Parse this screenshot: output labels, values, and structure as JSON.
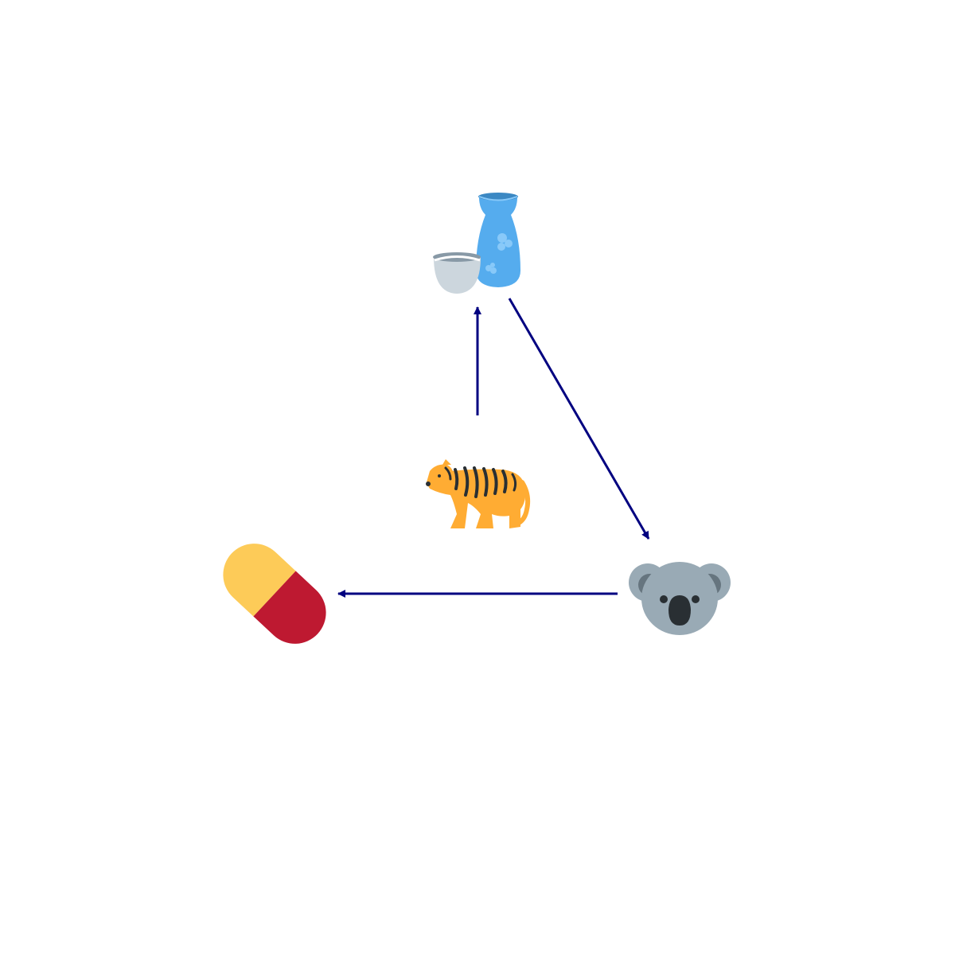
{
  "diagram": {
    "background": "#ffffff",
    "edge_color": "#000080",
    "nodes": [
      {
        "id": "sake",
        "icon": "sake-icon"
      },
      {
        "id": "koala",
        "icon": "koala-icon"
      },
      {
        "id": "pill",
        "icon": "pill-icon"
      },
      {
        "id": "tiger",
        "icon": "tiger-icon"
      }
    ],
    "edges": [
      {
        "from": "tiger",
        "to": "sake"
      },
      {
        "from": "sake",
        "to": "koala"
      },
      {
        "from": "koala",
        "to": "pill"
      }
    ]
  }
}
